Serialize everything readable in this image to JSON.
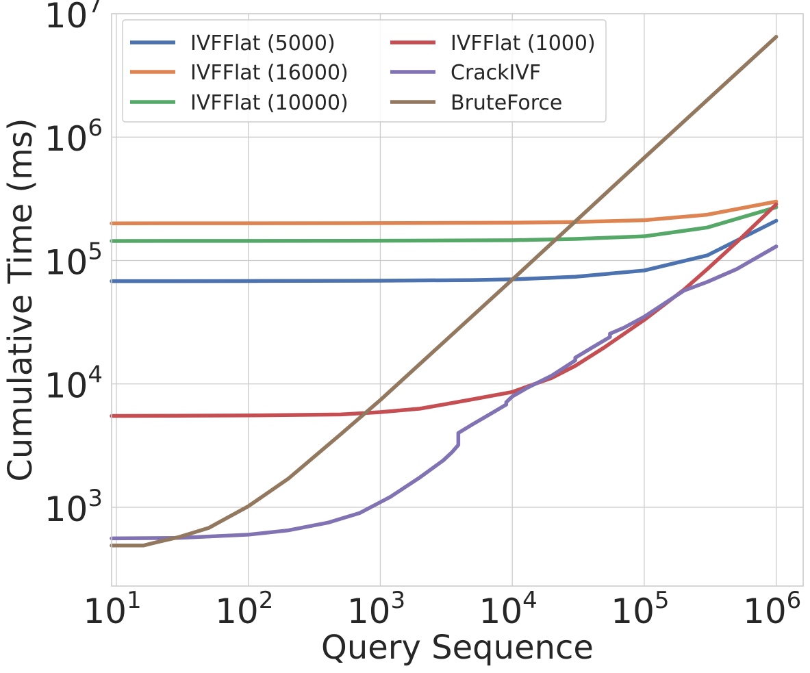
{
  "chart_data": {
    "type": "line",
    "title": "",
    "xlabel": "Query Sequence",
    "ylabel": "Cumulative Time (ms)",
    "xscale": "log",
    "yscale": "log",
    "xlim": [
      9.2,
      1600000
    ],
    "ylim": [
      230,
      10000000
    ],
    "grid": true,
    "legend_position": "upper-left, two columns",
    "x_ticks": [
      {
        "value": 10,
        "base": "10",
        "exp": "1"
      },
      {
        "value": 100,
        "base": "10",
        "exp": "2"
      },
      {
        "value": 1000,
        "base": "10",
        "exp": "3"
      },
      {
        "value": 10000,
        "base": "10",
        "exp": "4"
      },
      {
        "value": 100000,
        "base": "10",
        "exp": "5"
      },
      {
        "value": 1000000,
        "base": "10",
        "exp": "6"
      }
    ],
    "y_ticks": [
      {
        "value": 1000,
        "base": "10",
        "exp": "3"
      },
      {
        "value": 10000,
        "base": "10",
        "exp": "4"
      },
      {
        "value": 100000,
        "base": "10",
        "exp": "5"
      },
      {
        "value": 1000000,
        "base": "10",
        "exp": "6"
      },
      {
        "value": 10000000,
        "base": "10",
        "exp": "7"
      }
    ],
    "series": [
      {
        "name": "IVFFlat (5000)",
        "color": "#4c72b0",
        "points": [
          [
            9.2,
            68000
          ],
          [
            100,
            68200
          ],
          [
            1000,
            68600
          ],
          [
            5000,
            69400
          ],
          [
            10000,
            70300
          ],
          [
            30000,
            73800
          ],
          [
            100000,
            83000
          ],
          [
            300000,
            110000
          ],
          [
            1000000,
            210000
          ]
        ]
      },
      {
        "name": "IVFFlat (16000)",
        "color": "#dd8452",
        "points": [
          [
            9.2,
            200000
          ],
          [
            100,
            200200
          ],
          [
            1000,
            200800
          ],
          [
            10000,
            202500
          ],
          [
            30000,
            205000
          ],
          [
            100000,
            212000
          ],
          [
            300000,
            235000
          ],
          [
            1000000,
            300000
          ]
        ]
      },
      {
        "name": "IVFFlat (10000)",
        "color": "#55a868",
        "points": [
          [
            9.2,
            144000
          ],
          [
            100,
            144100
          ],
          [
            1000,
            144500
          ],
          [
            10000,
            146000
          ],
          [
            30000,
            149500
          ],
          [
            100000,
            157000
          ],
          [
            300000,
            185000
          ],
          [
            1000000,
            270000
          ]
        ]
      },
      {
        "name": "IVFFlat (1000)",
        "color": "#c44e52",
        "points": [
          [
            9.2,
            5500
          ],
          [
            100,
            5550
          ],
          [
            500,
            5650
          ],
          [
            1000,
            5900
          ],
          [
            2000,
            6300
          ],
          [
            3000,
            6800
          ],
          [
            5000,
            7500
          ],
          [
            10000,
            8600
          ],
          [
            20000,
            11200
          ],
          [
            30000,
            14000
          ],
          [
            50000,
            19800
          ],
          [
            100000,
            33000
          ],
          [
            200000,
            58000
          ],
          [
            300000,
            85000
          ],
          [
            500000,
            140000
          ],
          [
            1000000,
            285000
          ]
        ]
      },
      {
        "name": "CrackIVF",
        "color": "#8172b3",
        "points": [
          [
            9.2,
            560
          ],
          [
            30,
            565
          ],
          [
            100,
            600
          ],
          [
            200,
            650
          ],
          [
            400,
            750
          ],
          [
            700,
            900
          ],
          [
            1000,
            1100
          ],
          [
            1200,
            1220
          ],
          [
            2000,
            1750
          ],
          [
            3000,
            2400
          ],
          [
            3500,
            2800
          ],
          [
            3900,
            3200
          ],
          [
            3900,
            4000
          ],
          [
            5000,
            4700
          ],
          [
            7000,
            5800
          ],
          [
            9000,
            6800
          ],
          [
            9000,
            7100
          ],
          [
            10000,
            7900
          ],
          [
            13000,
            9300
          ],
          [
            20000,
            11700
          ],
          [
            30000,
            15500
          ],
          [
            30000,
            16300
          ],
          [
            40000,
            19600
          ],
          [
            55000,
            24000
          ],
          [
            55000,
            25500
          ],
          [
            70000,
            28500
          ],
          [
            100000,
            35000
          ],
          [
            200000,
            57000
          ],
          [
            300000,
            67000
          ],
          [
            500000,
            85000
          ],
          [
            1000000,
            130000
          ]
        ]
      },
      {
        "name": "BruteForce",
        "color": "#937860",
        "points": [
          [
            9.2,
            490
          ],
          [
            16,
            490
          ],
          [
            20,
            520
          ],
          [
            30,
            575
          ],
          [
            50,
            680
          ],
          [
            100,
            1020
          ],
          [
            200,
            1700
          ],
          [
            500,
            3900
          ],
          [
            1000,
            7400
          ],
          [
            10000,
            70000
          ],
          [
            100000,
            680000
          ],
          [
            1000000,
            6500000
          ]
        ]
      }
    ]
  }
}
